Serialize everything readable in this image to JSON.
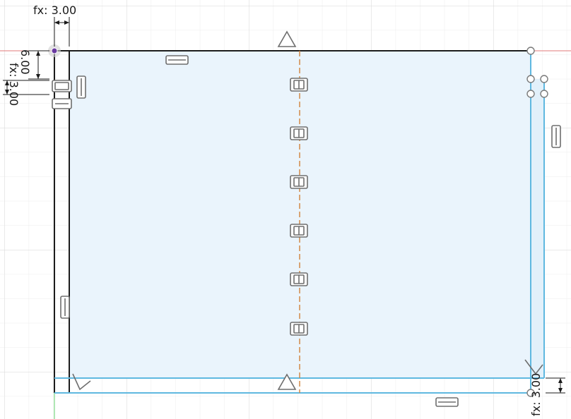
{
  "sketch": {
    "dimensions": {
      "top_width": "fx: 3.00",
      "left_offset_a": "6.00",
      "left_offset_b": "fx: 3.00",
      "bottom_right": "fx: 3.00"
    },
    "colors": {
      "background": "#ffffff",
      "grid_minor": "#ececec",
      "grid_major": "#d6d6d6",
      "axis_x": "#e07a7a",
      "axis_y": "#5fcf6a",
      "profile_fill": "#eaf4fc",
      "line_blue": "#5fb8e0",
      "line_black": "#1c1c1c",
      "centerline": "#d0833b",
      "constraint_icon": "#6e6e6e",
      "origin_point": "#6a3aa0"
    },
    "constraint_icons": {
      "horizontal_top": "horizontal-constraint-icon",
      "horizontal_bottom": "horizontal-constraint-icon",
      "vertical_right": "vertical-constraint-icon",
      "vertical_left": "vertical-constraint-icon",
      "midpoint_top": "midpoint-triangle-icon",
      "midpoint_bottom": "midpoint-triangle-icon",
      "coincident_stack": "coincident-constraint-icon",
      "perpendicular": "perpendicular-constraint-icon"
    }
  }
}
